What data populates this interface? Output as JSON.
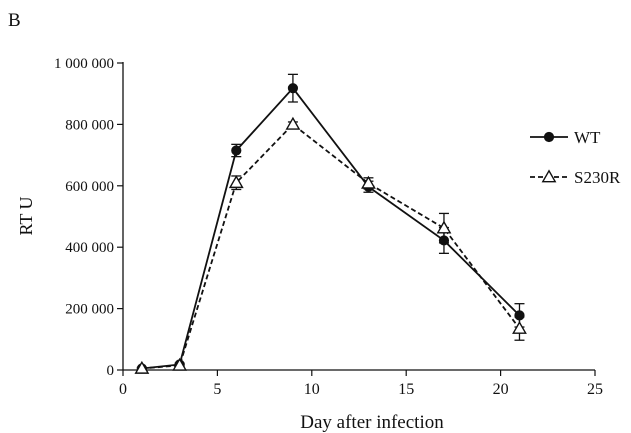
{
  "panel_label": "B",
  "chart_data": {
    "type": "line",
    "title": "",
    "xlabel": "Day after infection",
    "ylabel": "RT U",
    "xlim": [
      0,
      25
    ],
    "ylim": [
      0,
      1000000
    ],
    "xticks": [
      0,
      5,
      10,
      15,
      20,
      25
    ],
    "xtick_labels": [
      "0",
      "5",
      "10",
      "15",
      "20",
      "25"
    ],
    "yticks": [
      0,
      200000,
      400000,
      600000,
      800000,
      1000000
    ],
    "ytick_labels": [
      "0",
      "200 000",
      "400 000",
      "600 000",
      "800 000",
      "1 000 000"
    ],
    "grid": false,
    "legend_position": "top-right",
    "series": [
      {
        "name": "WT",
        "marker": "filled-circle",
        "line": "solid",
        "color": "#111111",
        "x": [
          1,
          3,
          6,
          9,
          13,
          17,
          21
        ],
        "y": [
          5000,
          18000,
          715000,
          918000,
          597000,
          422000,
          178000
        ],
        "err": [
          3000,
          4000,
          20000,
          45000,
          18000,
          42000,
          38000
        ]
      },
      {
        "name": "S230R",
        "marker": "open-triangle",
        "line": "dashed",
        "color": "#111111",
        "x": [
          1,
          3,
          6,
          9,
          13,
          17,
          21
        ],
        "y": [
          5000,
          15000,
          610000,
          800000,
          608000,
          462000,
          135000
        ],
        "err": [
          3000,
          4000,
          22000,
          8000,
          18000,
          48000,
          38000
        ]
      }
    ]
  }
}
